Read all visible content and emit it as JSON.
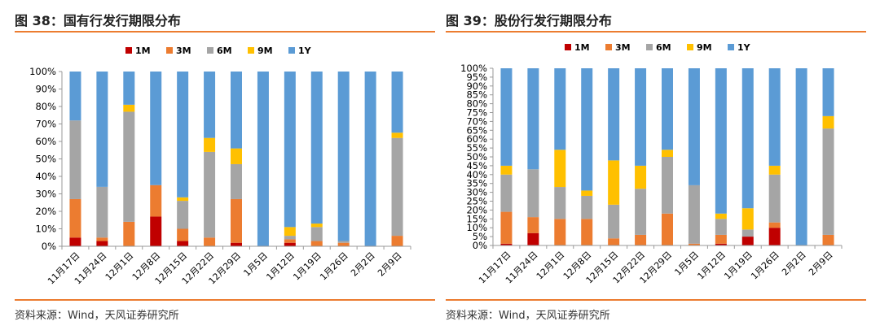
{
  "colors": {
    "1M": "#c00000",
    "3M": "#ec7c30",
    "6M": "#a5a5a5",
    "9M": "#ffc000",
    "1Y": "#5b9bd5",
    "rule": "#ec7c30"
  },
  "figures": [
    {
      "title": "图 38：国有行发行期限分布",
      "source": "资料来源：Wind，天风证券研究所"
    },
    {
      "title": "图 39：股份行发行期限分布",
      "source": "资料来源：Wind，天风证券研究所"
    }
  ],
  "chart_data": [
    {
      "type": "bar",
      "stacked": true,
      "percent": true,
      "ylim": [
        0,
        100
      ],
      "yticks": [
        "0%",
        "10%",
        "20%",
        "30%",
        "40%",
        "50%",
        "60%",
        "70%",
        "80%",
        "90%",
        "100%"
      ],
      "categories": [
        "11月17日",
        "11月24日",
        "12月1日",
        "12月8日",
        "12月15日",
        "12月22日",
        "12月29日",
        "1月5日",
        "1月12日",
        "1月19日",
        "1月26日",
        "2月2日",
        "2月9日"
      ],
      "legend": [
        "1M",
        "3M",
        "6M",
        "9M",
        "1Y"
      ],
      "legend_position": "top",
      "series": [
        {
          "name": "1M",
          "values": [
            5,
            3,
            0,
            17,
            3,
            0,
            2,
            0,
            2,
            0,
            0,
            0,
            0
          ]
        },
        {
          "name": "3M",
          "values": [
            22,
            2,
            14,
            18,
            7,
            5,
            25,
            0,
            2,
            3,
            2,
            0,
            6
          ]
        },
        {
          "name": "6M",
          "values": [
            45,
            29,
            63,
            0,
            16,
            49,
            20,
            0,
            2,
            8,
            1,
            0,
            56
          ]
        },
        {
          "name": "9M",
          "values": [
            0,
            0,
            4,
            0,
            2,
            8,
            9,
            0,
            5,
            2,
            0,
            0,
            3
          ]
        },
        {
          "name": "1Y",
          "values": [
            28,
            66,
            19,
            65,
            72,
            38,
            44,
            100,
            89,
            87,
            97,
            100,
            35
          ]
        }
      ]
    },
    {
      "type": "bar",
      "stacked": true,
      "percent": true,
      "ylim": [
        0,
        100
      ],
      "yticks": [
        "0%",
        "5%",
        "10%",
        "15%",
        "20%",
        "25%",
        "30%",
        "35%",
        "40%",
        "45%",
        "50%",
        "55%",
        "60%",
        "65%",
        "70%",
        "75%",
        "80%",
        "85%",
        "90%",
        "95%",
        "100%"
      ],
      "categories": [
        "11月17日",
        "11月24日",
        "12月1日",
        "12月8日",
        "12月15日",
        "12月22日",
        "12月29日",
        "1月5日",
        "1月12日",
        "1月19日",
        "1月26日",
        "2月2日",
        "2月9日"
      ],
      "legend": [
        "1M",
        "3M",
        "6M",
        "9M",
        "1Y"
      ],
      "legend_position": "top",
      "series": [
        {
          "name": "1M",
          "values": [
            1,
            7,
            0,
            0,
            0,
            0,
            0,
            0,
            1,
            5,
            10,
            0,
            0
          ]
        },
        {
          "name": "3M",
          "values": [
            18,
            9,
            15,
            15,
            4,
            6,
            18,
            1,
            5,
            0,
            3,
            0,
            6
          ]
        },
        {
          "name": "6M",
          "values": [
            21,
            27,
            18,
            13,
            19,
            26,
            32,
            33,
            9,
            4,
            27,
            0,
            60
          ]
        },
        {
          "name": "9M",
          "values": [
            5,
            0,
            21,
            3,
            25,
            13,
            4,
            0,
            3,
            12,
            5,
            0,
            7
          ]
        },
        {
          "name": "1Y",
          "values": [
            55,
            57,
            46,
            69,
            52,
            55,
            46,
            66,
            82,
            79,
            55,
            100,
            27
          ]
        }
      ]
    }
  ]
}
